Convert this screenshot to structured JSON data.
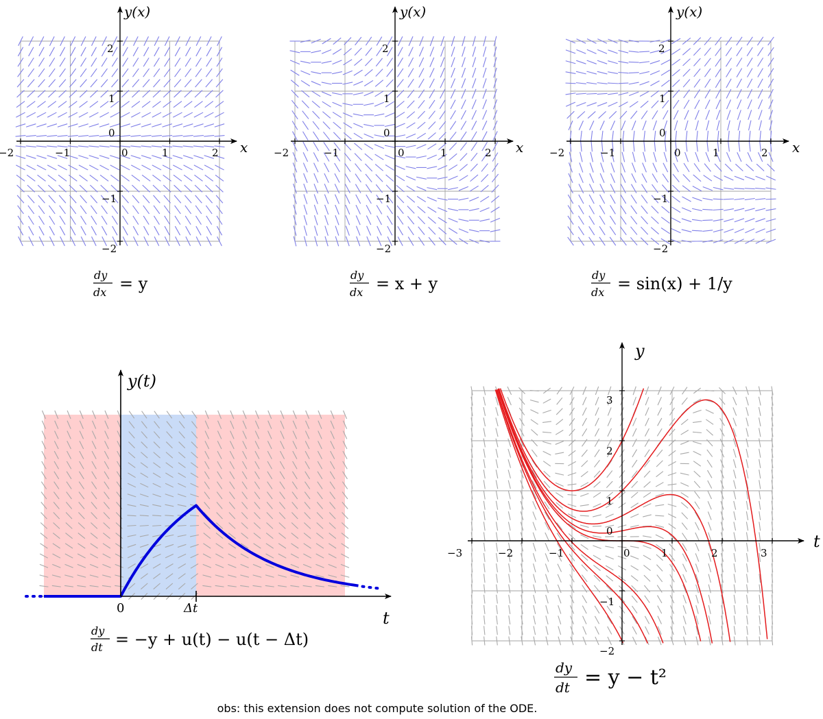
{
  "colors": {
    "blue_field": "#7f7fe8",
    "gray_field": "#a8a8a8",
    "grid": "#a3a3a3",
    "solution_red": "#e41a1c",
    "solution_blue": "#0000dd",
    "band_red": "#ffcfcf",
    "band_blue": "#c9dbf7"
  },
  "panels": [
    {
      "id": "p1",
      "xlabel": "x",
      "ylabel": "y(x)",
      "x_ticks": [
        "−2",
        "−1",
        "0",
        "1",
        "2"
      ],
      "y_ticks": [
        "−2",
        "−1",
        "0",
        "1",
        "2"
      ],
      "xlim": [
        -2,
        2
      ],
      "ylim": [
        -2,
        2
      ],
      "equation_lhs_num": "dy",
      "equation_lhs_den": "dx",
      "equation_rhs": "= y"
    },
    {
      "id": "p2",
      "xlabel": "x",
      "ylabel": "y(x)",
      "x_ticks": [
        "−2",
        "−1",
        "0",
        "1",
        "2"
      ],
      "y_ticks": [
        "−2",
        "−1",
        "0",
        "1",
        "2"
      ],
      "xlim": [
        -2,
        2
      ],
      "ylim": [
        -2,
        2
      ],
      "equation_lhs_num": "dy",
      "equation_lhs_den": "dx",
      "equation_rhs": "= x + y"
    },
    {
      "id": "p3",
      "xlabel": "x",
      "ylabel": "y(x)",
      "x_ticks": [
        "−2",
        "−1",
        "0",
        "1",
        "2"
      ],
      "y_ticks": [
        "−2",
        "−1",
        "0",
        "1",
        "2"
      ],
      "xlim": [
        -2,
        2
      ],
      "ylim": [
        -2,
        2
      ],
      "equation_lhs_num": "dy",
      "equation_lhs_den": "dx",
      "equation_rhs": "= sin(x) + 1/y"
    },
    {
      "id": "p4",
      "xlabel": "t",
      "ylabel": "y(t)",
      "x_ticks": [
        "0",
        "Δt"
      ],
      "equation_lhs_num": "dy",
      "equation_lhs_den": "dt",
      "equation_rhs": "= −y + u(t) − u(t − Δt)"
    },
    {
      "id": "p5",
      "xlabel": "t",
      "ylabel": "y",
      "x_ticks": [
        "−3",
        "−2",
        "−1",
        "0",
        "1",
        "2",
        "3"
      ],
      "y_ticks": [
        "−2",
        "−1",
        "0",
        "1",
        "2",
        "3"
      ],
      "xlim": [
        -3,
        3
      ],
      "ylim": [
        -2,
        3
      ],
      "solution_initial_values_at_t0": [
        -2,
        -1.2,
        -0.8,
        0,
        0.2,
        0.5,
        1,
        2
      ],
      "equation_lhs_num": "dy",
      "equation_lhs_den": "dt",
      "equation_rhs": "= y − t²"
    }
  ],
  "footnote": "obs: this extension does not compute solution of the ODE."
}
